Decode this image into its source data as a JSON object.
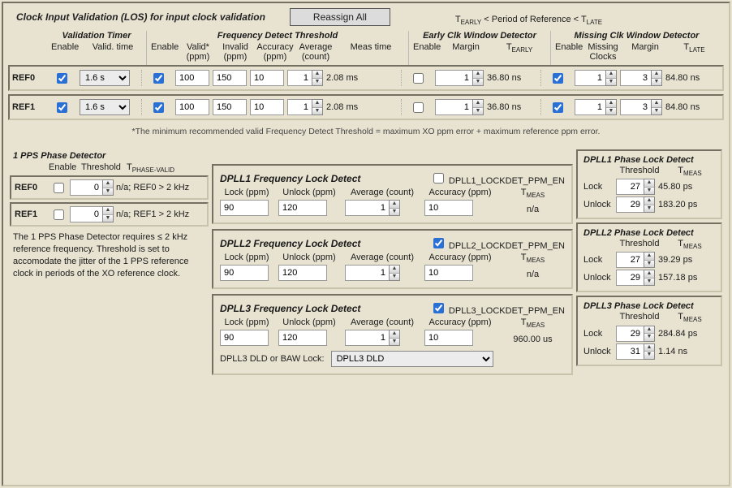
{
  "header": {
    "title": "Clock Input Validation (LOS) for input clock validation",
    "reassign_btn": "Reassign All",
    "formula_before": "T",
    "formula_mid": " < Period of Reference < T",
    "early_sub": "EARLY",
    "late_sub": "LATE"
  },
  "cols": {
    "validation_timer": "Validation Timer",
    "freq_detect": "Frequency Detect Threshold",
    "early_window": "Early Clk Window Detector",
    "missing_window": "Missing Clk Window Detector",
    "enable": "Enable",
    "valid_time": "Valid. time",
    "valid_ppm": "Valid*\n(ppm)",
    "invalid_ppm": "Invalid\n(ppm)",
    "accuracy_ppm": "Accuracy\n(ppm)",
    "avg_count": "Average\n(count)",
    "meas_time": "Meas time",
    "margin": "Margin",
    "t_early": "T",
    "t_early_sub": "EARLY",
    "missing_clocks": "Missing\nClocks",
    "t_late": "T",
    "t_late_sub": "LATE"
  },
  "rows": [
    {
      "label": "REF0",
      "vt_enable": true,
      "vt": "1.6 s",
      "fd_enable": true,
      "valid": "100",
      "invalid": "150",
      "acc": "10",
      "avg": "1",
      "meas": "2.08 ms",
      "early_en": false,
      "early_margin": "1",
      "t_early": "36.80 ns",
      "miss_en": true,
      "miss_clk": "1",
      "miss_margin": "3",
      "t_late": "84.80 ns"
    },
    {
      "label": "REF1",
      "vt_enable": true,
      "vt": "1.6 s",
      "fd_enable": true,
      "valid": "100",
      "invalid": "150",
      "acc": "10",
      "avg": "1",
      "meas": "2.08 ms",
      "early_en": false,
      "early_margin": "1",
      "t_early": "36.80 ns",
      "miss_en": true,
      "miss_clk": "1",
      "miss_margin": "3",
      "t_late": "84.80 ns"
    }
  ],
  "footnote": "*The minimum recommended valid Frequency Detect Threshold = maximum XO ppm error + maximum reference ppm error.",
  "pps": {
    "title": "1 PPS Phase Detector",
    "hdr_enable": "Enable",
    "hdr_threshold": "Threshold",
    "hdr_tpv": "T",
    "hdr_tpv_sub": "PHASE-VALID",
    "rows": [
      {
        "label": "REF0",
        "enable": false,
        "threshold": "0",
        "note": "n/a; REF0 > 2 kHz"
      },
      {
        "label": "REF1",
        "enable": false,
        "threshold": "0",
        "note": "n/a; REF1 > 2 kHz"
      }
    ],
    "desc": "The 1 PPS Phase Detector requires ≤ 2 kHz reference frequency. Threshold is set to accomodate the jitter of the 1 PPS reference clock in periods of the XO reference clock."
  },
  "fld_labels": {
    "lock": "Lock (ppm)",
    "unlock": "Unlock (ppm)",
    "avg": "Average (count)",
    "acc": "Accuracy (ppm)",
    "tmeas": "T",
    "tmeas_sub": "MEAS"
  },
  "flds": [
    {
      "title": "DPLL1 Frequency Lock Detect",
      "en_label": "DPLL1_LOCKDET_PPM_EN",
      "en": false,
      "lock": "90",
      "unlock": "120",
      "avg": "1",
      "acc": "10",
      "tmeas": "n/a"
    },
    {
      "title": "DPLL2 Frequency Lock Detect",
      "en_label": "DPLL2_LOCKDET_PPM_EN",
      "en": true,
      "lock": "90",
      "unlock": "120",
      "avg": "1",
      "acc": "10",
      "tmeas": "n/a"
    },
    {
      "title": "DPLL3 Frequency Lock Detect",
      "en_label": "DPLL3_LOCKDET_PPM_EN",
      "en": true,
      "lock": "90",
      "unlock": "120",
      "avg": "1",
      "acc": "10",
      "tmeas": "960.00 us"
    }
  ],
  "dld": {
    "label": "DPLL3 DLD or BAW Lock:",
    "value": "DPLL3 DLD"
  },
  "pld_labels": {
    "threshold": "Threshold",
    "tmeas": "T",
    "tmeas_sub": "MEAS",
    "lock": "Lock",
    "unlock": "Unlock"
  },
  "plds": [
    {
      "title": "DPLL1 Phase Lock Detect",
      "lock": "27",
      "lock_t": "45.80 ps",
      "unlock": "29",
      "unlock_t": "183.20 ps"
    },
    {
      "title": "DPLL2 Phase Lock Detect",
      "lock": "27",
      "lock_t": "39.29 ps",
      "unlock": "29",
      "unlock_t": "157.18 ps"
    },
    {
      "title": "DPLL3 Phase Lock Detect",
      "lock": "29",
      "lock_t": "284.84 ps",
      "unlock": "31",
      "unlock_t": "1.14 ns"
    }
  ]
}
